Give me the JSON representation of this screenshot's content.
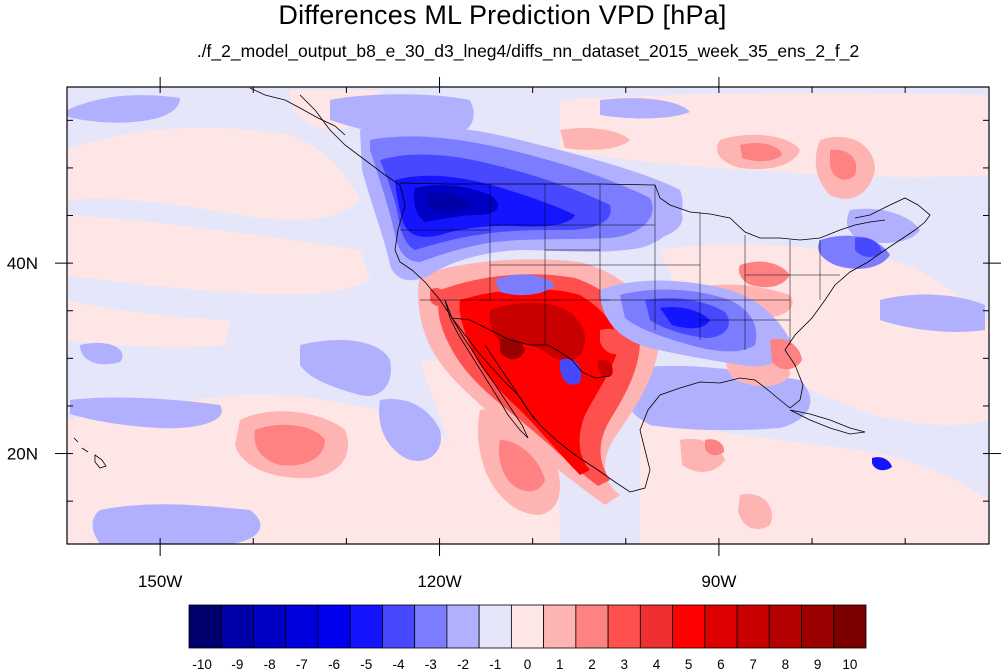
{
  "title": "Differences ML Prediction VPD [hPa]",
  "subtitle": "./f_2_model_output_b8_e_30_d3_lneg4/diffs_nn_dataset_2015_week_35_ens_2_f_2",
  "map": {
    "projection": "cylindrical-equidistant",
    "lon_range": [
      -160,
      -61
    ],
    "lat_range": [
      10.5,
      58.5
    ],
    "lon_ticks": [
      {
        "value": -150,
        "label": "150W"
      },
      {
        "value": -120,
        "label": "120W"
      },
      {
        "value": -90,
        "label": "90W"
      }
    ],
    "lat_ticks": [
      {
        "value": 40,
        "label": "40N"
      },
      {
        "value": 20,
        "label": "20N"
      }
    ],
    "background_level_color": "#e6e6fa",
    "outline_color": "#000000"
  },
  "colorbar": {
    "labels": [
      "-10",
      "-9",
      "-8",
      "-7",
      "-6",
      "-5",
      "-4",
      "-3",
      "-2",
      "-1",
      "0",
      "1",
      "2",
      "3",
      "4",
      "5",
      "6",
      "7",
      "8",
      "9",
      "10"
    ],
    "colors": [
      "#00006e",
      "#0000a8",
      "#0000c4",
      "#0000dc",
      "#0000f0",
      "#1414ff",
      "#4848ff",
      "#7c7cff",
      "#b0b0ff",
      "#e6e6fa",
      "#ffe6e6",
      "#ffb4b4",
      "#ff8282",
      "#ff5050",
      "#f03030",
      "#ff0000",
      "#dc0000",
      "#c80000",
      "#b40000",
      "#9a0000",
      "#7a0000"
    ]
  }
}
